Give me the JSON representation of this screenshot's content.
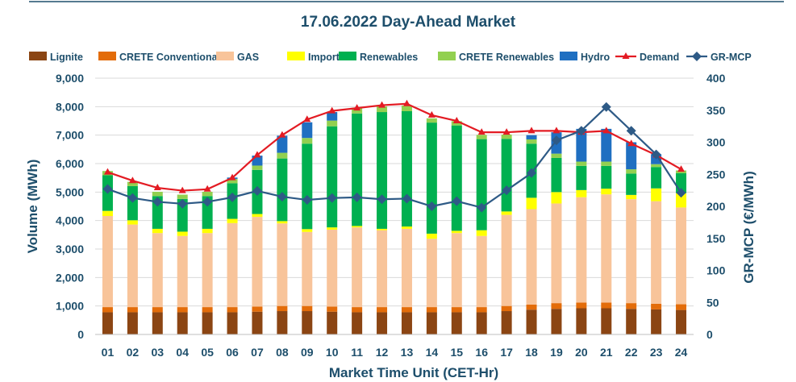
{
  "chart_data": {
    "type": "bar",
    "stacked": true,
    "title": "17.06.2022  Day-Ahead Market",
    "xlabel": "Market Time Unit (CET-Hr)",
    "ylabel": "Volume (MWh)",
    "y2label": "GR-MCP (€/MWh)",
    "ylim": [
      0,
      9000
    ],
    "y2lim": [
      0,
      400
    ],
    "yticks": [
      "0",
      "1,000",
      "2,000",
      "3,000",
      "4,000",
      "5,000",
      "6,000",
      "7,000",
      "8,000",
      "9,000"
    ],
    "y2ticks": [
      "0",
      "50",
      "100",
      "150",
      "200",
      "250",
      "300",
      "350",
      "400"
    ],
    "categories": [
      "01",
      "02",
      "03",
      "04",
      "05",
      "06",
      "07",
      "08",
      "09",
      "10",
      "11",
      "12",
      "13",
      "14",
      "15",
      "16",
      "17",
      "18",
      "19",
      "20",
      "21",
      "22",
      "23",
      "24"
    ],
    "series": [
      {
        "name": "Lignite",
        "color": "#8b4513",
        "kind": "bar",
        "values": [
          780,
          780,
          780,
          780,
          780,
          780,
          800,
          820,
          820,
          800,
          780,
          780,
          780,
          780,
          780,
          780,
          820,
          870,
          900,
          920,
          920,
          900,
          880,
          860
        ]
      },
      {
        "name": "CRETE Conventional",
        "color": "#e36c09",
        "kind": "bar",
        "values": [
          180,
          180,
          180,
          180,
          180,
          180,
          180,
          180,
          180,
          180,
          180,
          180,
          180,
          180,
          180,
          180,
          180,
          180,
          200,
          200,
          200,
          200,
          200,
          200
        ]
      },
      {
        "name": "GAS",
        "color": "#f8c49a",
        "kind": "bar",
        "values": [
          3200,
          2900,
          2600,
          2500,
          2600,
          2950,
          3150,
          2900,
          2600,
          2700,
          2800,
          2700,
          2750,
          2400,
          2600,
          2500,
          3200,
          3350,
          3500,
          3700,
          3800,
          3650,
          3600,
          3400
        ]
      },
      {
        "name": "Imports",
        "color": "#ffff00",
        "kind": "bar",
        "values": [
          180,
          150,
          150,
          150,
          150,
          150,
          100,
          80,
          100,
          80,
          50,
          50,
          80,
          180,
          80,
          200,
          120,
          400,
          400,
          250,
          200,
          150,
          450,
          500
        ]
      },
      {
        "name": "Renewables",
        "color": "#00b050",
        "kind": "bar",
        "values": [
          1250,
          1200,
          1150,
          1150,
          1150,
          1250,
          1550,
          2200,
          3000,
          3550,
          3950,
          4100,
          4050,
          3900,
          3700,
          3200,
          2550,
          1900,
          1200,
          850,
          800,
          750,
          750,
          700
        ]
      },
      {
        "name": "CRETE Renewables",
        "color": "#92d050",
        "kind": "bar",
        "values": [
          150,
          150,
          150,
          150,
          150,
          150,
          150,
          200,
          200,
          200,
          200,
          200,
          200,
          150,
          150,
          150,
          150,
          150,
          150,
          150,
          150,
          150,
          100,
          100
        ]
      },
      {
        "name": "Hydro",
        "color": "#1f6fc1",
        "kind": "bar",
        "values": [
          0,
          0,
          0,
          0,
          0,
          50,
          350,
          600,
          550,
          300,
          0,
          0,
          0,
          0,
          0,
          0,
          0,
          150,
          750,
          1150,
          1150,
          950,
          350,
          0
        ]
      },
      {
        "name": "Demand",
        "color": "#e31b23",
        "kind": "line",
        "values": [
          5700,
          5400,
          5150,
          5050,
          5100,
          5500,
          6300,
          7000,
          7550,
          7850,
          7950,
          8050,
          8100,
          7700,
          7500,
          7100,
          7100,
          7150,
          7150,
          7100,
          7150,
          6700,
          6300,
          5800
        ]
      },
      {
        "name": "GR-MCP",
        "color": "#2e5a86",
        "kind": "line",
        "axis": "right",
        "values": [
          227,
          213,
          207,
          204,
          207,
          214,
          224,
          215,
          210,
          213,
          214,
          211,
          212,
          200,
          208,
          198,
          225,
          252,
          303,
          318,
          355,
          318,
          281,
          221
        ]
      }
    ]
  }
}
